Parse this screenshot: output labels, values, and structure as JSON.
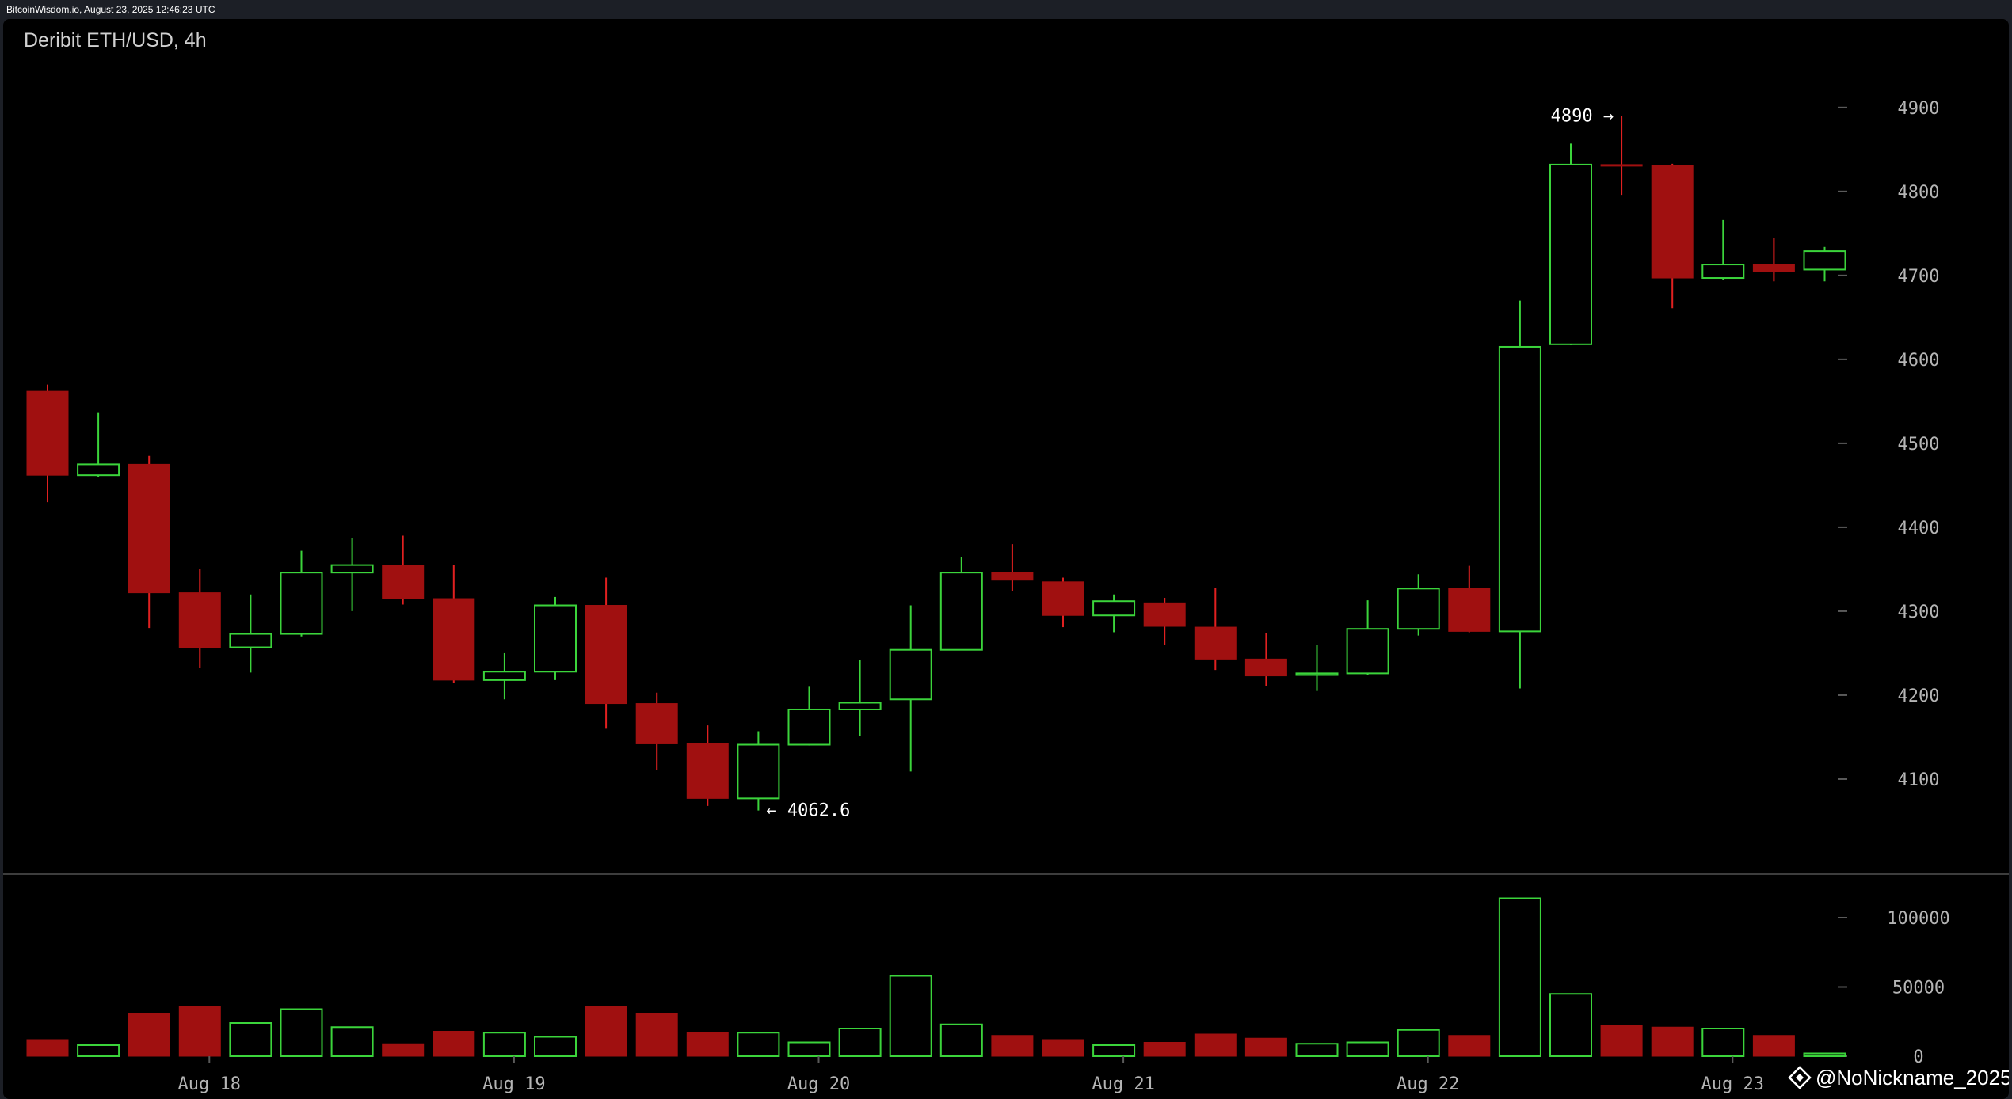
{
  "topbar": {
    "text": "BitcoinWisdom.io, August 23, 2025 12:46:23 UTC"
  },
  "chart_data": {
    "type": "candlestick",
    "title": "Deribit ETH/USD, 4h",
    "ylim": [
      4000,
      4930
    ],
    "y_ticks": [
      4100,
      4200,
      4300,
      4400,
      4500,
      4600,
      4700,
      4800,
      4900
    ],
    "volume_ylim": [
      0,
      120000
    ],
    "volume_ticks": [
      0,
      50000,
      100000
    ],
    "volume_tick_labels": [
      "0",
      "50000",
      "100000"
    ],
    "date_labels": [
      {
        "index": 3,
        "label": "Aug 18"
      },
      {
        "index": 9,
        "label": "Aug 19"
      },
      {
        "index": 15,
        "label": "Aug 20"
      },
      {
        "index": 21,
        "label": "Aug 21"
      },
      {
        "index": 27,
        "label": "Aug 22"
      },
      {
        "index": 33,
        "label": "Aug 23"
      }
    ],
    "annotations": [
      {
        "index": 31,
        "text": "4890 →",
        "value": 4890,
        "side": "left"
      },
      {
        "index": 14,
        "text": "← 4062.6",
        "value": 4062.6,
        "side": "right"
      }
    ],
    "colors": {
      "up": "#3bd43b",
      "down": "#a01010",
      "down_wick": "#e02020",
      "axis": "#5a5a5a"
    },
    "candles": [
      {
        "o": 4562,
        "h": 4570,
        "l": 4430,
        "c": 4462,
        "v": 12000
      },
      {
        "o": 4462,
        "h": 4537,
        "l": 4460,
        "c": 4475,
        "v": 8000
      },
      {
        "o": 4475,
        "h": 4485,
        "l": 4280,
        "c": 4322,
        "v": 31000
      },
      {
        "o": 4322,
        "h": 4350,
        "l": 4232,
        "c": 4257,
        "v": 36000
      },
      {
        "o": 4257,
        "h": 4320,
        "l": 4227,
        "c": 4273,
        "v": 24000
      },
      {
        "o": 4273,
        "h": 4372,
        "l": 4270,
        "c": 4346,
        "v": 34000
      },
      {
        "o": 4346,
        "h": 4387,
        "l": 4300,
        "c": 4355,
        "v": 21000
      },
      {
        "o": 4355,
        "h": 4390,
        "l": 4308,
        "c": 4315,
        "v": 9000
      },
      {
        "o": 4315,
        "h": 4355,
        "l": 4215,
        "c": 4218,
        "v": 18000
      },
      {
        "o": 4218,
        "h": 4250,
        "l": 4195,
        "c": 4228,
        "v": 17000
      },
      {
        "o": 4228,
        "h": 4317,
        "l": 4218,
        "c": 4307,
        "v": 14000
      },
      {
        "o": 4307,
        "h": 4340,
        "l": 4160,
        "c": 4190,
        "v": 36000
      },
      {
        "o": 4190,
        "h": 4203,
        "l": 4111,
        "c": 4142,
        "v": 31000
      },
      {
        "o": 4142,
        "h": 4164,
        "l": 4068,
        "c": 4077,
        "v": 17000
      },
      {
        "o": 4077,
        "h": 4157,
        "l": 4062.6,
        "c": 4141,
        "v": 17000
      },
      {
        "o": 4141,
        "h": 4210,
        "l": 4140,
        "c": 4183,
        "v": 10000
      },
      {
        "o": 4183,
        "h": 4242,
        "l": 4151,
        "c": 4191,
        "v": 20000
      },
      {
        "o": 4195,
        "h": 4307,
        "l": 4109,
        "c": 4254,
        "v": 58000
      },
      {
        "o": 4254,
        "h": 4365,
        "l": 4254,
        "c": 4346,
        "v": 23000
      },
      {
        "o": 4346,
        "h": 4380,
        "l": 4324,
        "c": 4337,
        "v": 15000
      },
      {
        "o": 4335,
        "h": 4340,
        "l": 4281,
        "c": 4295,
        "v": 12000
      },
      {
        "o": 4295,
        "h": 4320,
        "l": 4275,
        "c": 4312,
        "v": 8000
      },
      {
        "o": 4310,
        "h": 4316,
        "l": 4260,
        "c": 4282,
        "v": 10000
      },
      {
        "o": 4281,
        "h": 4328,
        "l": 4230,
        "c": 4243,
        "v": 16000
      },
      {
        "o": 4243,
        "h": 4274,
        "l": 4211,
        "c": 4223,
        "v": 13000
      },
      {
        "o": 4224,
        "h": 4260,
        "l": 4205,
        "c": 4226,
        "v": 9000
      },
      {
        "o": 4226,
        "h": 4313,
        "l": 4224,
        "c": 4279,
        "v": 10000
      },
      {
        "o": 4279,
        "h": 4344,
        "l": 4271,
        "c": 4327,
        "v": 19000
      },
      {
        "o": 4327,
        "h": 4354,
        "l": 4275,
        "c": 4276,
        "v": 15000
      },
      {
        "o": 4276,
        "h": 4670,
        "l": 4208,
        "c": 4615,
        "v": 114000
      },
      {
        "o": 4618,
        "h": 4857,
        "l": 4617,
        "c": 4832,
        "v": 45000
      },
      {
        "o": 4832,
        "h": 4890,
        "l": 4796,
        "c": 4831,
        "v": 22000
      },
      {
        "o": 4831,
        "h": 4833,
        "l": 4661,
        "c": 4697,
        "v": 21000
      },
      {
        "o": 4697,
        "h": 4766,
        "l": 4695,
        "c": 4713,
        "v": 20000
      },
      {
        "o": 4713,
        "h": 4745,
        "l": 4693,
        "c": 4705,
        "v": 15000
      },
      {
        "o": 4707,
        "h": 4734,
        "l": 4693,
        "c": 4729,
        "v": 2000
      }
    ]
  },
  "watermark": {
    "text": "@NoNickname_2025"
  }
}
